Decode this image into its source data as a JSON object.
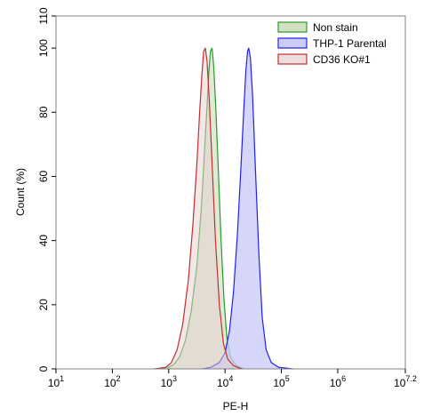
{
  "chart_data": {
    "type": "area",
    "xlabel": "PE-H",
    "ylabel": "Count (%)",
    "x_scale": "log10",
    "xlim": [
      1,
      7.2
    ],
    "ylim": [
      0,
      110
    ],
    "x_ticks": [
      {
        "value": 1,
        "base": "10",
        "exp": "1"
      },
      {
        "value": 2,
        "base": "10",
        "exp": "2"
      },
      {
        "value": 3,
        "base": "10",
        "exp": "3"
      },
      {
        "value": 4,
        "base": "10",
        "exp": "4"
      },
      {
        "value": 5,
        "base": "10",
        "exp": "5"
      },
      {
        "value": 6,
        "base": "10",
        "exp": "6"
      },
      {
        "value": 7.2,
        "base": "10",
        "exp": "7.2"
      }
    ],
    "y_ticks": [
      0,
      20,
      40,
      60,
      80,
      100,
      110
    ],
    "grid": false,
    "legend_position": "top-right",
    "series": [
      {
        "name": "Non stain",
        "stroke": "#2b9a2b",
        "fill": "#b7cfa0",
        "fill_opacity": 0.45,
        "points": [
          [
            2.8,
            0
          ],
          [
            3.0,
            0.5
          ],
          [
            3.1,
            1.5
          ],
          [
            3.2,
            4
          ],
          [
            3.3,
            9
          ],
          [
            3.4,
            18
          ],
          [
            3.5,
            32
          ],
          [
            3.58,
            50
          ],
          [
            3.63,
            66
          ],
          [
            3.68,
            82
          ],
          [
            3.71,
            92
          ],
          [
            3.74,
            99
          ],
          [
            3.77,
            100
          ],
          [
            3.8,
            94
          ],
          [
            3.84,
            80
          ],
          [
            3.88,
            62
          ],
          [
            3.93,
            40
          ],
          [
            3.98,
            22
          ],
          [
            4.03,
            10
          ],
          [
            4.1,
            3.5
          ],
          [
            4.2,
            1
          ],
          [
            4.35,
            0
          ]
        ]
      },
      {
        "name": "THP-1 Parental",
        "stroke": "#2020ee",
        "fill": "#c8c8f8",
        "fill_opacity": 0.75,
        "points": [
          [
            3.6,
            0
          ],
          [
            3.75,
            0.5
          ],
          [
            3.9,
            2
          ],
          [
            4.0,
            5
          ],
          [
            4.08,
            12
          ],
          [
            4.15,
            24
          ],
          [
            4.22,
            42
          ],
          [
            4.28,
            62
          ],
          [
            4.33,
            80
          ],
          [
            4.37,
            93
          ],
          [
            4.4,
            99
          ],
          [
            4.42,
            100
          ],
          [
            4.45,
            97
          ],
          [
            4.49,
            85
          ],
          [
            4.54,
            62
          ],
          [
            4.6,
            36
          ],
          [
            4.66,
            16
          ],
          [
            4.73,
            6
          ],
          [
            4.82,
            2
          ],
          [
            4.95,
            0.5
          ],
          [
            5.2,
            0
          ]
        ]
      },
      {
        "name": "CD36 KO#1",
        "stroke": "#c03030",
        "fill": "#e8cfcf",
        "fill_opacity": 0.5,
        "points": [
          [
            2.75,
            0
          ],
          [
            2.95,
            0.5
          ],
          [
            3.05,
            2
          ],
          [
            3.15,
            6
          ],
          [
            3.25,
            14
          ],
          [
            3.35,
            28
          ],
          [
            3.43,
            45
          ],
          [
            3.5,
            64
          ],
          [
            3.55,
            80
          ],
          [
            3.59,
            92
          ],
          [
            3.62,
            99
          ],
          [
            3.65,
            100
          ],
          [
            3.68,
            96
          ],
          [
            3.72,
            84
          ],
          [
            3.77,
            64
          ],
          [
            3.83,
            40
          ],
          [
            3.9,
            20
          ],
          [
            3.97,
            8
          ],
          [
            4.05,
            3
          ],
          [
            4.15,
            1
          ],
          [
            4.3,
            0
          ]
        ]
      }
    ]
  }
}
